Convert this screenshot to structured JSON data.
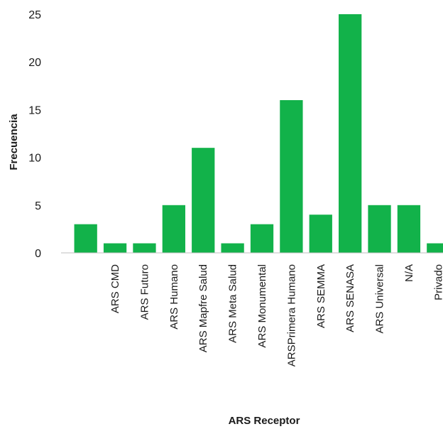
{
  "chart_data": {
    "type": "bar",
    "title": "",
    "xlabel": "ARS Receptor",
    "ylabel": "Frecuencia",
    "ylim": [
      0,
      25
    ],
    "yticks": [
      0,
      5,
      10,
      15,
      20,
      25
    ],
    "grid": false,
    "bar_color": "#12b24a",
    "categories": [
      "",
      "ARS CMD",
      "ARS Futuro",
      "ARS Humano",
      "ARS Mapfre Salud",
      "ARS Meta Salud",
      "ARS Monumental",
      "ARSPrimera Humano",
      "ARS SEMMA",
      "ARS SENASA",
      "ARS Universal",
      "N/A",
      "Privado"
    ],
    "values": [
      3,
      1,
      1,
      5,
      11,
      1,
      3,
      16,
      4,
      25,
      5,
      5,
      1
    ]
  }
}
